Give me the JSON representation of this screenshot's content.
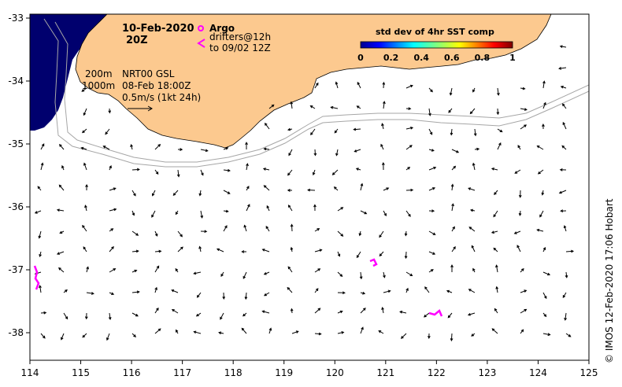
{
  "map": {
    "date": "10-Feb-2020",
    "hour": "20Z",
    "argo_label": "Argo",
    "drifters_line1": "drifters@12h",
    "drifters_line2": "to 09/02 12Z",
    "isobath_200": "200m",
    "isobath_1000": "1000m",
    "product_line1": "NRT00 GSL",
    "product_line2": "08-Feb 18:00Z",
    "scale_label": "0.5m/s (1kt 24h)",
    "credit": "© IMOS 12-Feb-2020 17:06 Hobart",
    "colorbar": {
      "title": "std dev of 4hr SST comp",
      "ticks": [
        "0",
        "0.2",
        "0.4",
        "0.6",
        "0.8",
        "1"
      ]
    },
    "x_ticks": [
      "114",
      "115",
      "116",
      "117",
      "118",
      "119",
      "120",
      "121",
      "122",
      "123",
      "124",
      "125"
    ],
    "y_ticks": [
      "-33",
      "-34",
      "-35",
      "-36",
      "-37",
      "-38"
    ],
    "colors": {
      "land": "#fcc98f",
      "sst_high": "#00006e",
      "isobath": "#a6a6a6",
      "drifter": "#ff00ff",
      "vectors": "#000000"
    }
  }
}
